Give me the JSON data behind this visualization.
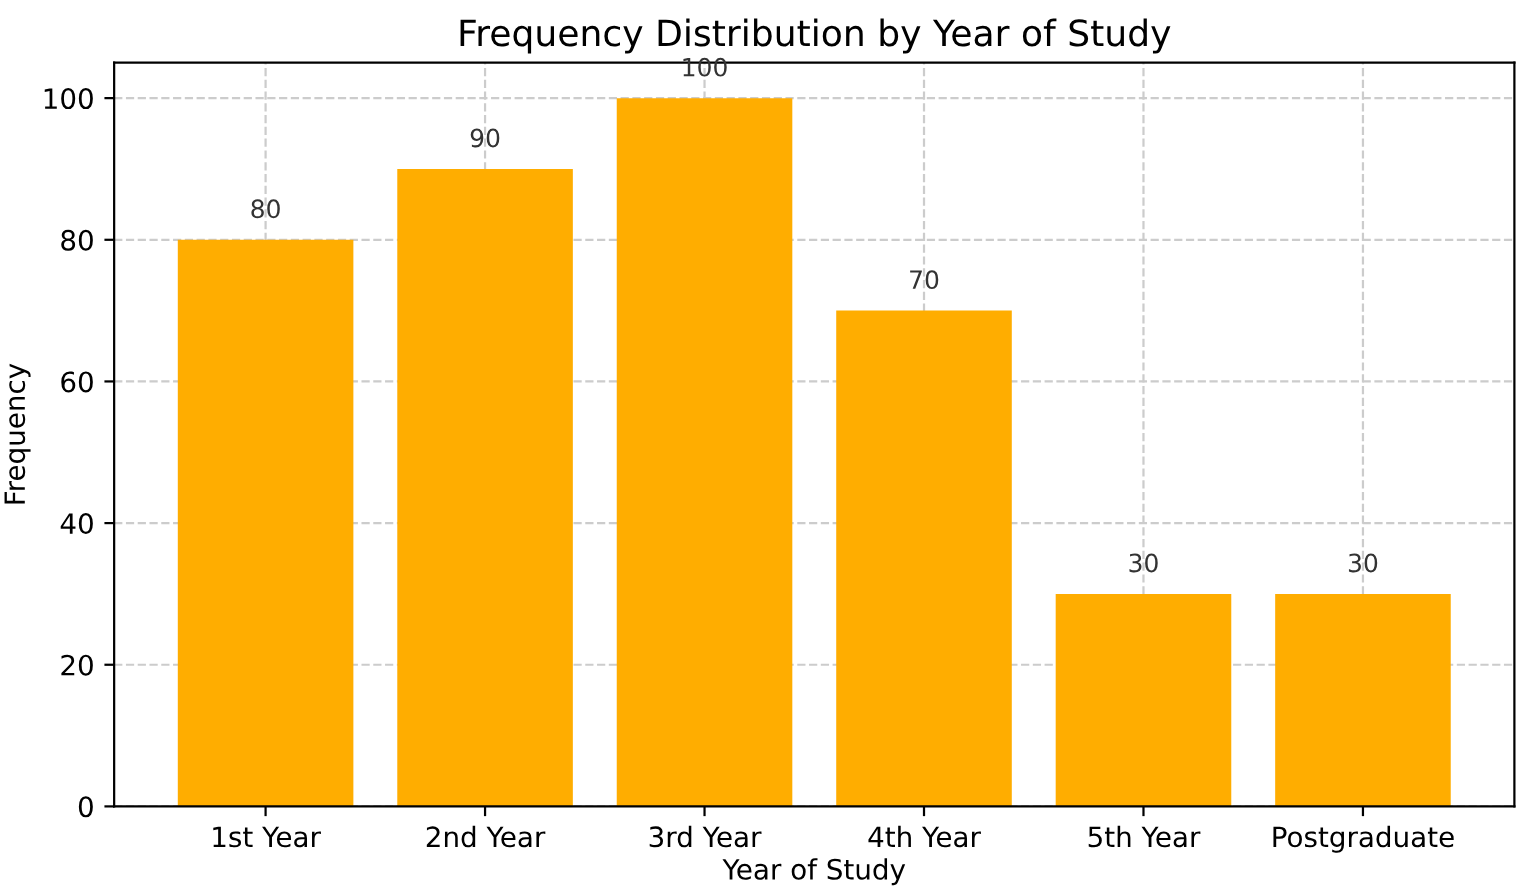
{
  "chart_data": {
    "type": "bar",
    "title": "Frequency Distribution by Year of Study",
    "xlabel": "Year of Study",
    "ylabel": "Frequency",
    "categories": [
      "1st Year",
      "2nd Year",
      "3rd Year",
      "4th Year",
      "5th Year",
      "Postgraduate"
    ],
    "values": [
      80,
      90,
      100,
      70,
      30,
      30
    ],
    "color": "#ffad00",
    "ylim": [
      0,
      105
    ],
    "yticks": [
      0,
      20,
      40,
      60,
      80,
      100
    ],
    "grid": true,
    "data_labels": true
  }
}
